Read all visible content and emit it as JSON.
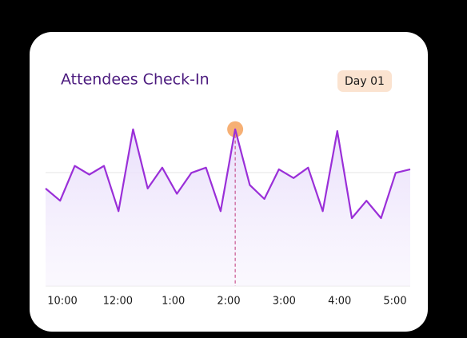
{
  "chart_data": {
    "type": "line",
    "title": "Attendees Check-In",
    "badge": "Day 01",
    "x_labels": [
      "10:00",
      "12:00",
      "1:00",
      "2:00",
      "3:00",
      "4:00",
      "5:00"
    ],
    "series": [
      {
        "color": "#9a2fd8",
        "values": [
          56,
          49,
          69,
          64,
          69,
          43,
          90,
          56,
          68,
          53,
          65,
          68,
          43,
          90,
          58,
          50,
          67,
          62,
          68,
          43,
          89,
          39,
          49,
          39,
          65,
          67
        ]
      }
    ],
    "ylim": [
      0,
      100
    ],
    "highlight_index": 13,
    "highlight_color": "#f5a25d"
  }
}
